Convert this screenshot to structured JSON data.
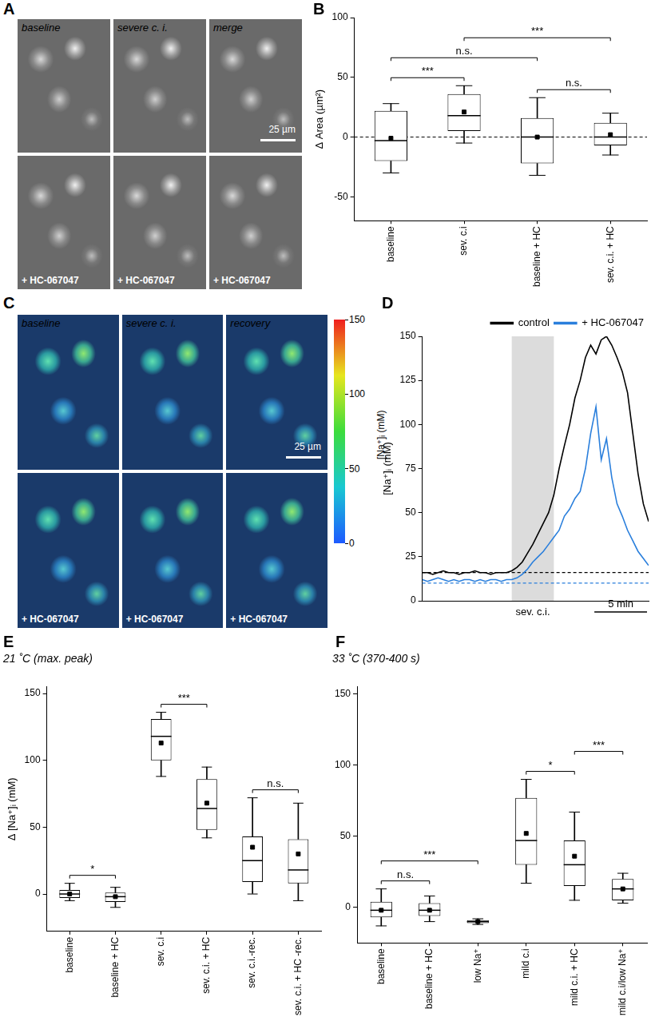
{
  "image_panels": [
    {
      "panel": "A",
      "rows": [
        {
          "labels": [
            "baseline",
            "severe c. i.",
            "merge"
          ]
        },
        {
          "labels": [
            "+ HC-067047",
            "+ HC-067047",
            "+ HC-067047"
          ]
        }
      ],
      "scale_bar": "25 µm"
    },
    {
      "panel": "C",
      "rows": [
        {
          "labels": [
            "baseline",
            "severe c. i.",
            "recovery"
          ]
        },
        {
          "labels": [
            "+ HC-067047",
            "+ HC-067047",
            "+ HC-067047"
          ]
        }
      ],
      "scale_bar": "25 µm",
      "colorbar": {
        "label": "[Na⁺]ᵢ (mM)",
        "range": [
          0,
          150
        ],
        "ticks": [
          0,
          50,
          100,
          150
        ],
        "colors": [
          "#1e5aff",
          "#19c8d2",
          "#3cdc3c",
          "#e6e61e",
          "#f01e1e"
        ]
      }
    }
  ],
  "chart_data": [
    {
      "panel": "B",
      "type": "box",
      "categories": [
        "baseline",
        "sev. c.i",
        "baseline + HC",
        "sev. c.i. + HC"
      ],
      "whisker_low": [
        -30,
        -5,
        -32,
        -15
      ],
      "q1": [
        -20,
        5,
        -22,
        -7
      ],
      "median": [
        -3,
        18,
        0,
        0
      ],
      "q3": [
        22,
        36,
        16,
        12
      ],
      "whisker_high": [
        28,
        43,
        33,
        20
      ],
      "mean": [
        -1,
        21,
        0,
        2
      ],
      "color": "#ffffff",
      "ylabel": "Δ Area (µm²)",
      "ylim": [
        -70,
        100
      ],
      "yticks": [
        -50,
        0,
        50,
        100
      ],
      "reference_line": 0,
      "grid": false,
      "significance": [
        {
          "between": [
            "baseline",
            "baseline + HC"
          ],
          "label": "n.s."
        },
        {
          "between": [
            "baseline",
            "sev. c.i"
          ],
          "label": "***"
        },
        {
          "between": [
            "sev. c.i",
            "sev. c.i. + HC"
          ],
          "label": "***"
        },
        {
          "between": [
            "baseline + HC",
            "sev. c.i. + HC"
          ],
          "label": "n.s."
        }
      ]
    },
    {
      "panel": "D",
      "type": "line",
      "x": [
        0,
        0.5,
        1,
        1.5,
        2,
        2.5,
        3,
        3.5,
        4,
        4.5,
        5,
        5.5,
        6,
        6.5,
        7,
        7.5,
        8,
        8.5,
        9,
        9.5,
        10,
        10.5,
        11,
        11.5,
        12,
        12.5,
        13,
        13.5,
        14,
        14.5,
        15,
        15.5,
        16,
        16.5,
        17,
        17.5,
        18,
        18.5,
        19,
        19.5,
        20,
        20.5,
        21,
        21.5
      ],
      "series": [
        {
          "name": "control",
          "color": "#000000",
          "baseline": 16,
          "values": [
            16,
            16,
            15,
            16,
            17,
            16,
            16,
            15,
            16,
            16,
            17,
            16,
            16,
            15,
            16,
            16,
            16,
            17,
            19,
            22,
            27,
            32,
            38,
            44,
            50,
            60,
            75,
            88,
            100,
            115,
            125,
            138,
            145,
            140,
            148,
            150,
            145,
            138,
            130,
            118,
            95,
            72,
            55,
            45
          ]
        },
        {
          "name": "+ HC-067047",
          "color": "#2a7fdc",
          "baseline": 10,
          "values": [
            12,
            11,
            12,
            13,
            12,
            11,
            12,
            11,
            12,
            12,
            11,
            12,
            11,
            12,
            12,
            11,
            12,
            12,
            13,
            15,
            18,
            22,
            25,
            28,
            32,
            36,
            40,
            48,
            52,
            58,
            62,
            75,
            95,
            110,
            80,
            92,
            70,
            55,
            48,
            40,
            34,
            28,
            24,
            20
          ]
        }
      ],
      "ylabel": "[Na⁺]ᵢ (mM)",
      "xlim": [
        0,
        21.5
      ],
      "ylim": [
        0,
        150
      ],
      "yticks": [
        0,
        25,
        50,
        75,
        100,
        125,
        150
      ],
      "tick_labels": "y",
      "legend": "top",
      "grid": false,
      "shaded": {
        "from": 8.5,
        "to": 12.5,
        "label": "sev. c.i."
      },
      "scale_bar": {
        "value": 5,
        "label": "5 min"
      }
    },
    {
      "panel": "E",
      "type": "box",
      "title": "21 ˚C (max. peak)",
      "categories": [
        "baseline",
        "baseline + HC",
        "sev. c.i",
        "sev. c.i. + HC",
        "sev. c.i.-rec.",
        "sev. c.i. + HC -rec."
      ],
      "whisker_low": [
        -5,
        -10,
        88,
        42,
        0,
        -5
      ],
      "q1": [
        -3,
        -6,
        100,
        48,
        9,
        8
      ],
      "median": [
        0,
        -2,
        118,
        64,
        25,
        18
      ],
      "q3": [
        3,
        1,
        131,
        86,
        43,
        41
      ],
      "whisker_high": [
        8,
        5,
        136,
        95,
        72,
        68
      ],
      "mean": [
        0,
        -2,
        113,
        68,
        35,
        30
      ],
      "color": "#ffffff",
      "ylabel": "Δ [Na⁺]ᵢ (mM)",
      "ylim": [
        -28,
        155
      ],
      "yticks": [
        0,
        50,
        100,
        150
      ],
      "grid": false,
      "significance": [
        {
          "between": [
            "baseline",
            "baseline + HC"
          ],
          "label": "*"
        },
        {
          "between": [
            "sev. c.i",
            "sev. c.i. + HC"
          ],
          "label": "***"
        },
        {
          "between": [
            "sev. c.i.-rec.",
            "sev. c.i. + HC -rec."
          ],
          "label": "n.s."
        }
      ]
    },
    {
      "panel": "F",
      "type": "box",
      "title": "33 ˚C (370-400 s)",
      "categories": [
        "baseline",
        "baseline + HC",
        "low Na⁺",
        "mild c.i",
        "mild c.i. + HC",
        "mild c.i/low Na⁺"
      ],
      "whisker_low": [
        -13,
        -10,
        -12,
        17,
        5,
        3
      ],
      "q1": [
        -7,
        -6,
        -11,
        30,
        15,
        5
      ],
      "median": [
        -2,
        -2,
        -10,
        47,
        30,
        13
      ],
      "q3": [
        4,
        3,
        -9,
        77,
        47,
        20
      ],
      "whisker_high": [
        13,
        8,
        -8,
        90,
        67,
        24
      ],
      "mean": [
        -2,
        -2,
        -10,
        52,
        36,
        13
      ],
      "color": "#ffffff",
      "ylim": [
        -25,
        155
      ],
      "yticks": [
        0,
        50,
        100,
        150
      ],
      "grid": false,
      "significance": [
        {
          "between": [
            "baseline",
            "baseline + HC"
          ],
          "label": "n.s."
        },
        {
          "between": [
            "baseline",
            "low Na⁺"
          ],
          "label": "***"
        },
        {
          "between": [
            "mild c.i",
            "mild c.i. + HC"
          ],
          "label": "*"
        },
        {
          "between": [
            "mild c.i. + HC",
            "mild c.i/low Na⁺"
          ],
          "label": "***"
        }
      ]
    }
  ]
}
